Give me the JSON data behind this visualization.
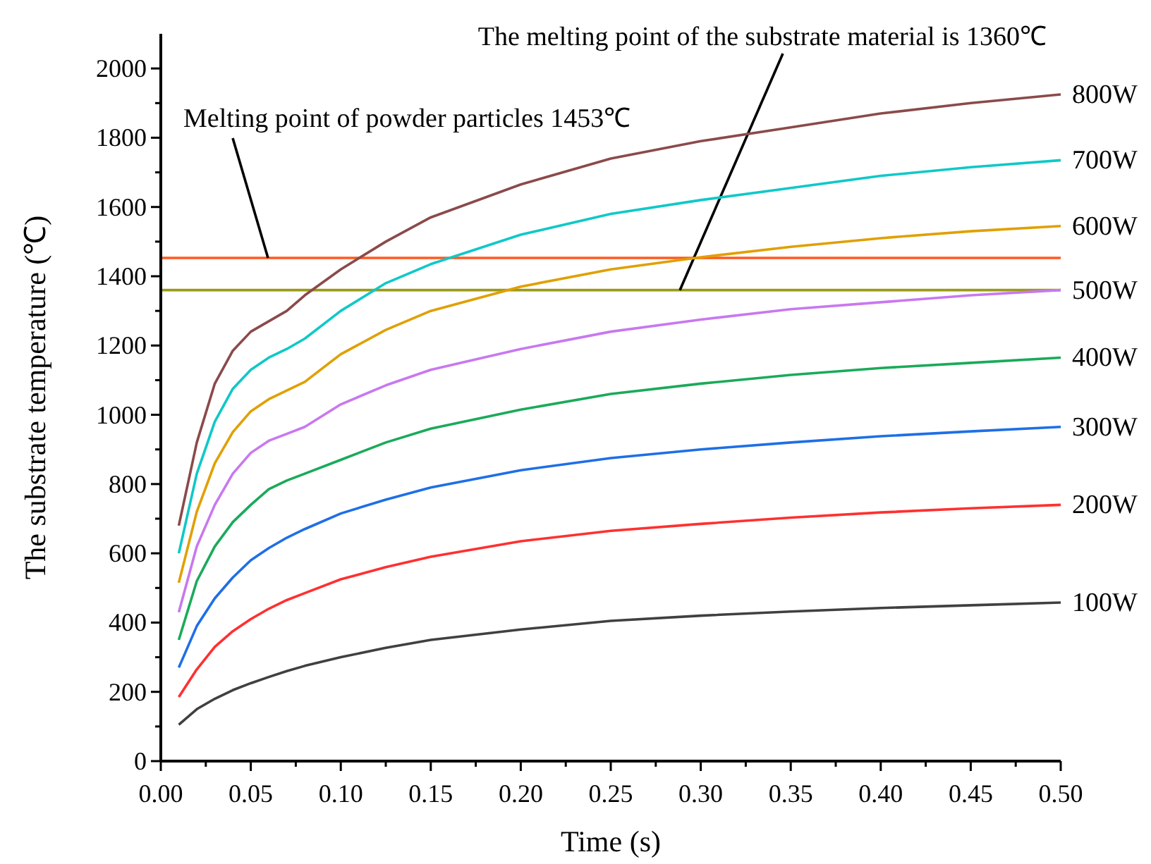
{
  "chart_data": {
    "type": "line",
    "xlabel": "Time (s)",
    "ylabel": "The substrate temperature (℃)",
    "x": [
      0.01,
      0.02,
      0.03,
      0.04,
      0.05,
      0.06,
      0.07,
      0.08,
      0.1,
      0.125,
      0.15,
      0.2,
      0.25,
      0.3,
      0.35,
      0.4,
      0.45,
      0.5
    ],
    "series": [
      {
        "name": "100W",
        "color": "#404040",
        "values": [
          105,
          150,
          180,
          205,
          225,
          243,
          260,
          275,
          300,
          327,
          350,
          380,
          405,
          420,
          432,
          442,
          450,
          458
        ]
      },
      {
        "name": "200W",
        "color": "#ff3030",
        "values": [
          185,
          265,
          330,
          375,
          410,
          440,
          465,
          485,
          525,
          560,
          590,
          635,
          665,
          685,
          703,
          718,
          730,
          740
        ]
      },
      {
        "name": "300W",
        "color": "#1e6fe6",
        "values": [
          270,
          390,
          470,
          530,
          580,
          615,
          645,
          670,
          715,
          755,
          790,
          840,
          875,
          900,
          920,
          938,
          952,
          965
        ]
      },
      {
        "name": "400W",
        "color": "#1aaa5a",
        "values": [
          350,
          520,
          620,
          690,
          740,
          785,
          810,
          830,
          870,
          920,
          960,
          1015,
          1060,
          1090,
          1115,
          1135,
          1150,
          1165
        ]
      },
      {
        "name": "500W",
        "color": "#c878f0",
        "values": [
          430,
          620,
          740,
          830,
          890,
          925,
          945,
          965,
          1030,
          1085,
          1130,
          1190,
          1240,
          1275,
          1305,
          1325,
          1345,
          1360
        ]
      },
      {
        "name": "600W",
        "color": "#e0a000",
        "values": [
          515,
          720,
          860,
          950,
          1010,
          1045,
          1070,
          1095,
          1175,
          1245,
          1300,
          1370,
          1420,
          1455,
          1485,
          1510,
          1530,
          1545
        ]
      },
      {
        "name": "700W",
        "color": "#10c8c8",
        "values": [
          600,
          830,
          980,
          1075,
          1130,
          1165,
          1190,
          1220,
          1300,
          1380,
          1435,
          1520,
          1580,
          1620,
          1655,
          1690,
          1715,
          1735
        ]
      },
      {
        "name": "800W",
        "color": "#8b4a4a",
        "values": [
          680,
          920,
          1090,
          1185,
          1240,
          1270,
          1300,
          1345,
          1420,
          1500,
          1570,
          1665,
          1740,
          1790,
          1830,
          1870,
          1900,
          1925
        ]
      }
    ],
    "ref_lines": [
      {
        "axis": "y",
        "value": 1453,
        "label": "Melting point of powder particles 1453℃",
        "color": "#ff5a1e"
      },
      {
        "axis": "y",
        "value": 1360,
        "label": "The melting point of the substrate material is 1360℃",
        "color": "#9a9a1a"
      }
    ],
    "xlim": [
      0,
      0.5
    ],
    "xticks": [
      {
        "value": 0,
        "label": "0.00"
      },
      {
        "value": 0.05,
        "label": "0.05"
      },
      {
        "value": 0.1,
        "label": "0.10"
      },
      {
        "value": 0.15,
        "label": "0.15"
      },
      {
        "value": 0.2,
        "label": "0.20"
      },
      {
        "value": 0.25,
        "label": "0.25"
      },
      {
        "value": 0.3,
        "label": "0.30"
      },
      {
        "value": 0.35,
        "label": "0.35"
      },
      {
        "value": 0.4,
        "label": "0.40"
      },
      {
        "value": 0.45,
        "label": "0.45"
      },
      {
        "value": 0.5,
        "label": "0.50"
      }
    ],
    "ylim": [
      0,
      2100
    ],
    "yticks": [
      0,
      200,
      400,
      600,
      800,
      1000,
      1200,
      1400,
      1600,
      1800,
      2000
    ],
    "grid": false,
    "marker": "none",
    "line_style": "solid"
  }
}
